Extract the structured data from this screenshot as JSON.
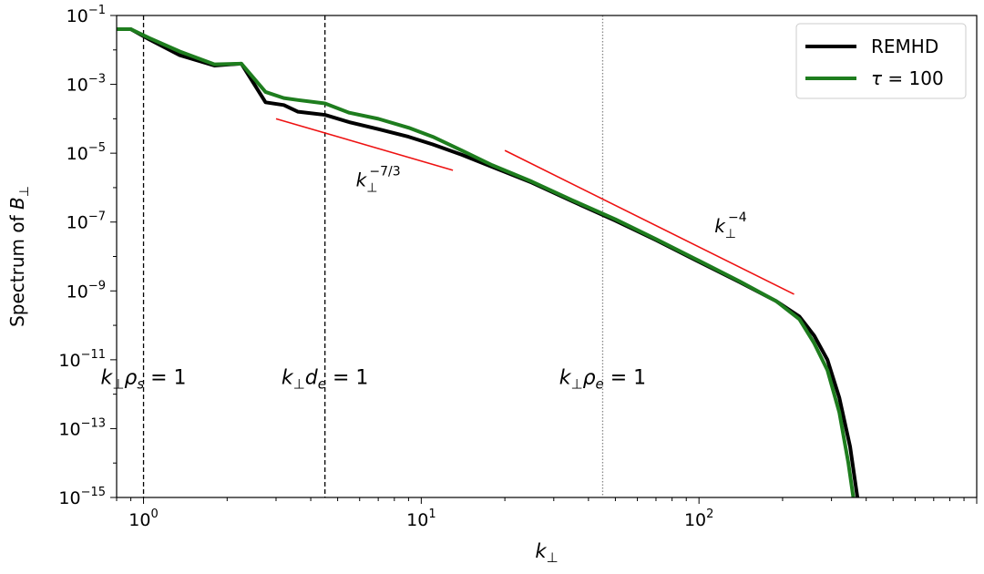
{
  "chart_data": {
    "type": "line",
    "xlabel_base": "k",
    "xlabel_sub": "⊥",
    "ylabel_main": "Spectrum of ",
    "ylabel_var": "B",
    "ylabel_sub": "⊥",
    "x_scale": "log",
    "y_scale": "log",
    "xlim": [
      0.8,
      1000
    ],
    "ylim": [
      1e-15,
      0.1
    ],
    "grid": false,
    "legend_position": "upper right",
    "x_ticks": [
      {
        "value": 1,
        "base": "10",
        "exp": "0"
      },
      {
        "value": 10,
        "base": "10",
        "exp": "1"
      },
      {
        "value": 100,
        "base": "10",
        "exp": "2"
      }
    ],
    "y_ticks": [
      {
        "value": 0.1,
        "base": "10",
        "exp": "−1"
      },
      {
        "value": 0.001,
        "base": "10",
        "exp": "−3"
      },
      {
        "value": 1e-05,
        "base": "10",
        "exp": "−5"
      },
      {
        "value": 1e-07,
        "base": "10",
        "exp": "−7"
      },
      {
        "value": 1e-09,
        "base": "10",
        "exp": "−9"
      },
      {
        "value": 1e-11,
        "base": "10",
        "exp": "−11"
      },
      {
        "value": 1e-13,
        "base": "10",
        "exp": "−13"
      },
      {
        "value": 1e-15,
        "base": "10",
        "exp": "−15"
      }
    ],
    "series": [
      {
        "name": "REMHD",
        "color": "#000000",
        "points": [
          [
            0.78,
            0.04
          ],
          [
            0.9,
            0.04
          ],
          [
            1.05,
            0.02
          ],
          [
            1.35,
            0.007
          ],
          [
            1.8,
            0.0035
          ],
          [
            2.25,
            0.004
          ],
          [
            2.75,
            0.0003
          ],
          [
            3.2,
            0.00025
          ],
          [
            3.6,
            0.00016
          ],
          [
            4.5,
            0.00013
          ],
          [
            5.5,
            8e-05
          ],
          [
            7,
            5e-05
          ],
          [
            9,
            3e-05
          ],
          [
            11,
            1.8e-05
          ],
          [
            14,
            9e-06
          ],
          [
            18,
            4e-06
          ],
          [
            25,
            1.4e-06
          ],
          [
            35,
            4e-07
          ],
          [
            50,
            1.1e-07
          ],
          [
            70,
            3e-08
          ],
          [
            100,
            7e-09
          ],
          [
            140,
            1.8e-09
          ],
          [
            190,
            5e-10
          ],
          [
            230,
            1.8e-10
          ],
          [
            260,
            5e-11
          ],
          [
            290,
            1e-11
          ],
          [
            320,
            8e-13
          ],
          [
            350,
            3e-14
          ],
          [
            380,
            3e-16
          ]
        ]
      },
      {
        "name": "τ = 100",
        "name_symbol": "τ",
        "name_rest": " = 100",
        "color": "#1e7d1e",
        "points": [
          [
            0.78,
            0.04
          ],
          [
            0.9,
            0.04
          ],
          [
            1.05,
            0.022
          ],
          [
            1.35,
            0.009
          ],
          [
            1.8,
            0.0038
          ],
          [
            2.25,
            0.004
          ],
          [
            2.75,
            0.0006
          ],
          [
            3.2,
            0.0004
          ],
          [
            3.6,
            0.00035
          ],
          [
            4.5,
            0.00028
          ],
          [
            5.5,
            0.00015
          ],
          [
            7,
            0.0001
          ],
          [
            9,
            5.5e-05
          ],
          [
            11,
            3e-05
          ],
          [
            14,
            1.2e-05
          ],
          [
            18,
            4.5e-06
          ],
          [
            25,
            1.5e-06
          ],
          [
            35,
            4.3e-07
          ],
          [
            50,
            1.2e-07
          ],
          [
            70,
            3.2e-08
          ],
          [
            100,
            7.5e-09
          ],
          [
            140,
            1.9e-09
          ],
          [
            190,
            5e-10
          ],
          [
            230,
            1.5e-10
          ],
          [
            260,
            3e-11
          ],
          [
            290,
            5e-12
          ],
          [
            320,
            3e-13
          ],
          [
            345,
            1e-14
          ],
          [
            370,
            2e-16
          ]
        ]
      }
    ],
    "reference_lines": [
      {
        "from": [
          3,
          0.0001
        ],
        "to": [
          13,
          3.2e-06
        ],
        "color": "#ee1111",
        "label_base": "k",
        "label_sub": "⊥",
        "label_exp": "−7/3",
        "label_at": [
          7,
          1.1e-06
        ]
      },
      {
        "from": [
          20,
          1.2e-05
        ],
        "to": [
          220,
          8e-10
        ],
        "color": "#ee1111",
        "label_base": "k",
        "label_sub": "⊥",
        "label_exp": "−4",
        "label_at": [
          130,
          5e-08
        ]
      }
    ],
    "vertical_lines": [
      {
        "x": 1.0,
        "style": "dashed",
        "label_k": "k",
        "label_sub": "⊥",
        "label_sym": "ρ",
        "label_symsub": "s",
        "label_rest": " = 1",
        "label_at": [
          1.0,
          2e-12
        ]
      },
      {
        "x": 4.5,
        "style": "dashed",
        "label_k": "k",
        "label_sub": "⊥",
        "label_sym": "d",
        "label_symsub": "e",
        "label_rest": " = 1",
        "label_at": [
          4.5,
          2e-12
        ]
      },
      {
        "x": 45,
        "style": "dotted",
        "label_k": "k",
        "label_sub": "⊥",
        "label_sym": "ρ",
        "label_symsub": "e",
        "label_rest": " = 1",
        "label_at": [
          45,
          2e-12
        ]
      }
    ]
  }
}
